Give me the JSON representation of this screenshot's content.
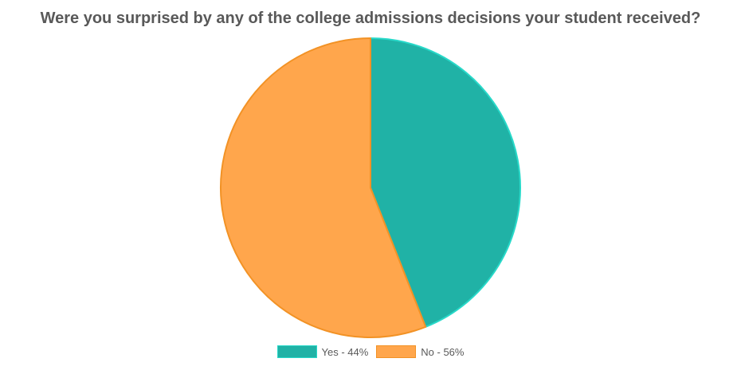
{
  "chart_data": {
    "type": "pie",
    "title": "Were you surprised by any of the college admissions decisions your student received?",
    "categories": [
      "Yes",
      "No"
    ],
    "values": [
      44,
      56
    ],
    "unit": "%",
    "legend_labels": [
      "Yes - 44%",
      "No - 56%"
    ],
    "colors": [
      "#20b2a6",
      "#ffa64c"
    ],
    "stroke_colors": [
      "#28d9c9",
      "#f29225"
    ],
    "legend_position": "bottom",
    "start_angle": "top, clockwise"
  }
}
